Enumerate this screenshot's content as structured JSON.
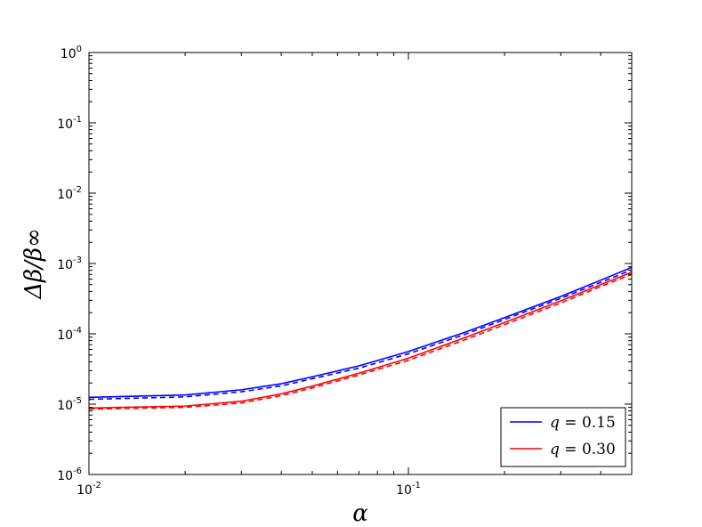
{
  "chart_data": {
    "type": "line",
    "x_scale": "log",
    "y_scale": "log",
    "xlim": [
      0.01,
      0.5
    ],
    "ylim": [
      1e-06,
      1
    ],
    "xlabel": "α",
    "ylabel": "Δβ/β∞",
    "x_ticks": [
      {
        "value": 0.01,
        "base": "10",
        "exp": "-2"
      },
      {
        "value": 0.1,
        "base": "10",
        "exp": "-1"
      }
    ],
    "y_ticks": [
      {
        "value": 1e-06,
        "base": "10",
        "exp": "-6"
      },
      {
        "value": 1e-05,
        "base": "10",
        "exp": "-5"
      },
      {
        "value": 0.0001,
        "base": "10",
        "exp": "-4"
      },
      {
        "value": 0.001,
        "base": "10",
        "exp": "-3"
      },
      {
        "value": 0.01,
        "base": "10",
        "exp": "-2"
      },
      {
        "value": 0.1,
        "base": "10",
        "exp": "-1"
      },
      {
        "value": 1,
        "base": "10",
        "exp": "0"
      }
    ],
    "grid": false,
    "legend_position": "bottom-right",
    "x": [
      0.01,
      0.02,
      0.03,
      0.04,
      0.05,
      0.07,
      0.1,
      0.15,
      0.2,
      0.3,
      0.4,
      0.5
    ],
    "series": [
      {
        "name": "q = 0.15",
        "color": "#0000ff",
        "dash": "solid",
        "legend": true,
        "values": [
          1.25e-05,
          1.35e-05,
          1.6e-05,
          1.95e-05,
          2.45e-05,
          3.5e-05,
          5.6e-05,
          0.000105,
          0.00017,
          0.00034,
          0.00058,
          0.00088
        ]
      },
      {
        "name": "",
        "color": "#0000ff",
        "dash": "dashed",
        "legend": false,
        "values": [
          1.17e-05,
          1.27e-05,
          1.5e-05,
          1.82e-05,
          2.3e-05,
          3.25e-05,
          5.2e-05,
          9.8e-05,
          0.00016,
          0.00032,
          0.00054,
          0.00081
        ]
      },
      {
        "name": "q = 0.30",
        "color": "#ff0000",
        "dash": "solid",
        "legend": true,
        "values": [
          8.8e-06,
          9.4e-06,
          1.1e-05,
          1.4e-05,
          1.8e-05,
          2.75e-05,
          4.5e-05,
          8.8e-05,
          0.000145,
          0.000295,
          0.0005,
          0.00075
        ]
      },
      {
        "name": "",
        "color": "#ff0000",
        "dash": "dashed",
        "legend": false,
        "values": [
          8.5e-06,
          9e-06,
          1.04e-05,
          1.32e-05,
          1.7e-05,
          2.6e-05,
          4.2e-05,
          8.2e-05,
          0.000135,
          0.000275,
          0.00047,
          0.0007
        ]
      }
    ],
    "legend": {
      "entries": [
        {
          "var": "q",
          "eq": " = ",
          "val": "0.15",
          "color": "#0000ff"
        },
        {
          "var": "q",
          "eq": " = ",
          "val": "0.30",
          "color": "#ff0000"
        }
      ]
    }
  }
}
